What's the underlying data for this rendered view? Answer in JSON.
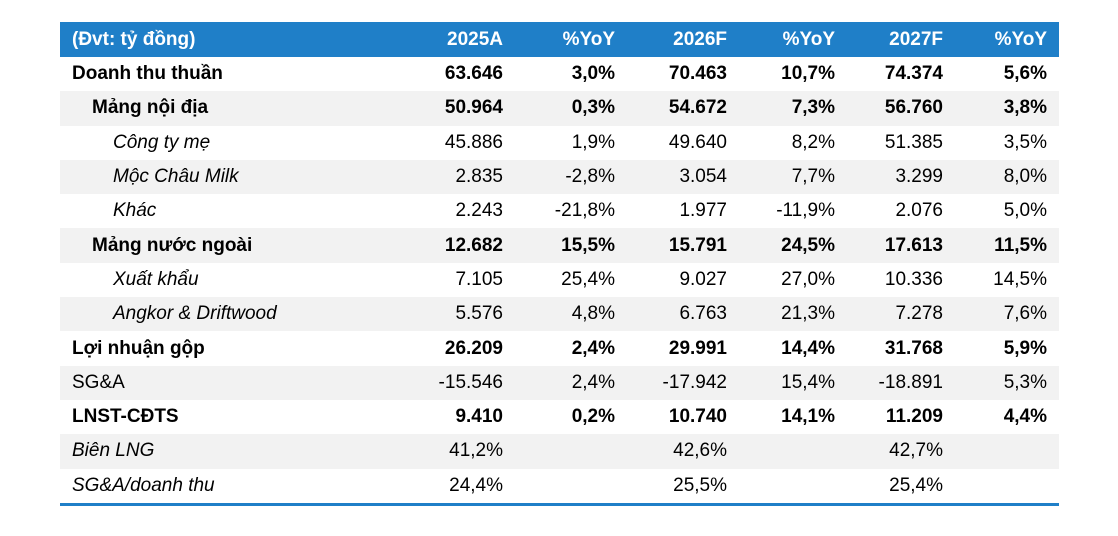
{
  "header": [
    "(Đvt: tỷ đồng)",
    "2025A",
    "%YoY",
    "2026F",
    "%YoY",
    "2027F",
    "%YoY"
  ],
  "rows": [
    {
      "label": "Doanh thu thuần",
      "values": [
        "63.646",
        "3,0%",
        "70.463",
        "10,7%",
        "74.374",
        "5,6%"
      ]
    },
    {
      "label": "Mảng nội địa",
      "values": [
        "50.964",
        "0,3%",
        "54.672",
        "7,3%",
        "56.760",
        "3,8%"
      ]
    },
    {
      "label": "Công ty mẹ",
      "values": [
        "45.886",
        "1,9%",
        "49.640",
        "8,2%",
        "51.385",
        "3,5%"
      ]
    },
    {
      "label": "Mộc Châu Milk",
      "values": [
        "2.835",
        "-2,8%",
        "3.054",
        "7,7%",
        "3.299",
        "8,0%"
      ]
    },
    {
      "label": "Khác",
      "values": [
        "2.243",
        "-21,8%",
        "1.977",
        "-11,9%",
        "2.076",
        "5,0%"
      ]
    },
    {
      "label": "Mảng nước ngoài",
      "values": [
        "12.682",
        "15,5%",
        "15.791",
        "24,5%",
        "17.613",
        "11,5%"
      ]
    },
    {
      "label": "Xuất khẩu",
      "values": [
        "7.105",
        "25,4%",
        "9.027",
        "27,0%",
        "10.336",
        "14,5%"
      ]
    },
    {
      "label": "Angkor & Driftwood",
      "values": [
        "5.576",
        "4,8%",
        "6.763",
        "21,3%",
        "7.278",
        "7,6%"
      ]
    },
    {
      "label": "Lợi nhuận gộp",
      "values": [
        "26.209",
        "2,4%",
        "29.991",
        "14,4%",
        "31.768",
        "5,9%"
      ]
    },
    {
      "label": "SG&A",
      "values": [
        "-15.546",
        "2,4%",
        "-17.942",
        "15,4%",
        "-18.891",
        "5,3%"
      ]
    },
    {
      "label": "LNST-CĐTS",
      "values": [
        "9.410",
        "0,2%",
        "10.740",
        "14,1%",
        "11.209",
        "4,4%"
      ]
    },
    {
      "label": "Biên LNG",
      "values": [
        "41,2%",
        "",
        "42,6%",
        "",
        "42,7%",
        ""
      ]
    },
    {
      "label": "SG&A/doanh thu",
      "values": [
        "24,4%",
        "",
        "25,5%",
        "",
        "25,4%",
        ""
      ]
    }
  ],
  "colors": {
    "header_bg": "#1f7fc8",
    "header_text": "#ffffff",
    "row_shade": "#f2f2f2",
    "rule": "#1f7fc8"
  }
}
